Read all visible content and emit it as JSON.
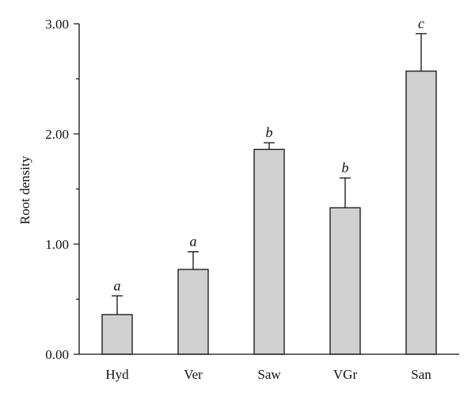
{
  "chart_data": {
    "type": "bar",
    "categories": [
      "Hyd",
      "Ver",
      "Saw",
      "VGr",
      "San"
    ],
    "values": [
      0.36,
      0.77,
      1.86,
      1.33,
      2.57
    ],
    "error_upper": [
      0.53,
      0.93,
      1.92,
      1.6,
      2.91
    ],
    "significance_labels": [
      "a",
      "a",
      "b",
      "b",
      "c"
    ],
    "ylabel": "Root density",
    "xlabel": "",
    "ylim": [
      0,
      3
    ],
    "yticks": [
      0,
      1,
      2,
      3
    ],
    "ytick_labels": [
      "0.00",
      "1.00",
      "2.00",
      "3.00"
    ],
    "grid": false,
    "colors": {
      "bar_fill": "#d0d0d0",
      "stroke": "#111111"
    }
  }
}
